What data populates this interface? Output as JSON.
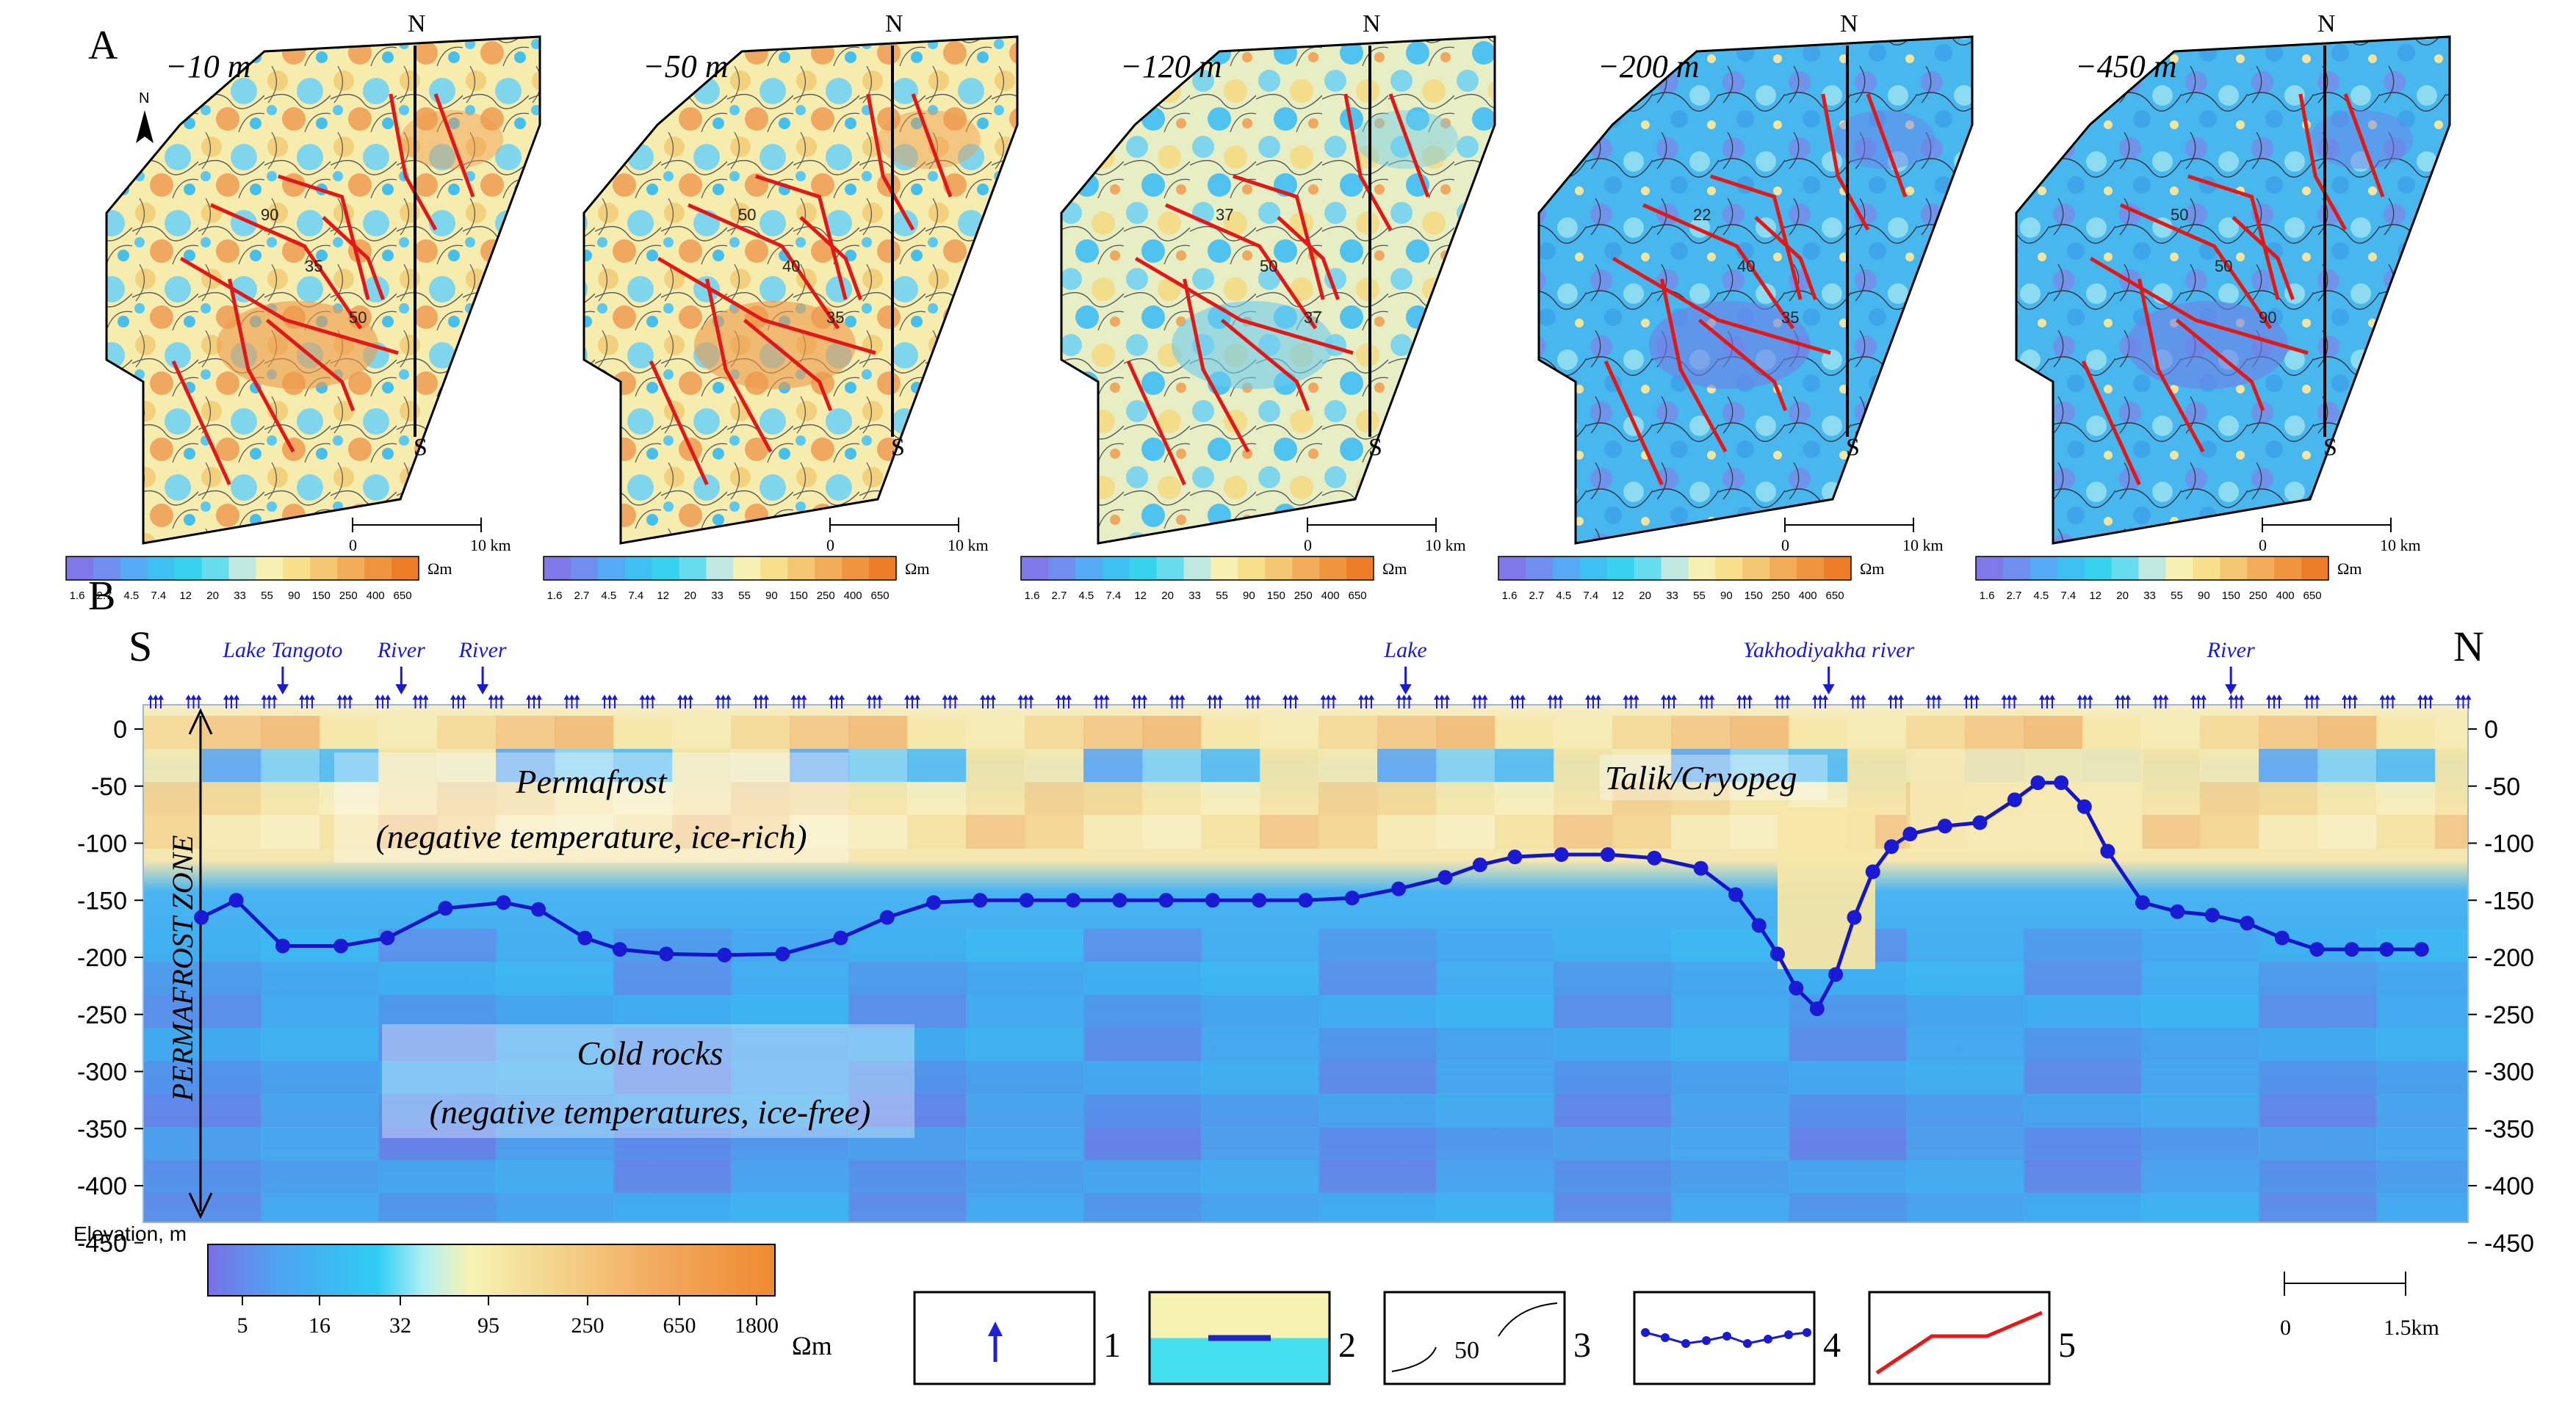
{
  "panel_a": {
    "label": "A",
    "north_arrow_letter": "N",
    "maps": [
      {
        "depth": "−10 m",
        "north": "N",
        "south": "S",
        "theme": "warm"
      },
      {
        "depth": "−50 m",
        "north": "N",
        "south": "S",
        "theme": "warm"
      },
      {
        "depth": "−120 m",
        "north": "N",
        "south": "S",
        "theme": "mixed"
      },
      {
        "depth": "−200 m",
        "north": "N",
        "south": "S",
        "theme": "cold"
      },
      {
        "depth": "−450 m",
        "north": "N",
        "south": "S",
        "theme": "cold"
      }
    ],
    "contour_labels": [
      "90",
      "35",
      "50",
      "50",
      "40",
      "35",
      "37",
      "50",
      "37",
      "22",
      "40",
      "35",
      "50",
      "50"
    ],
    "scalebar": {
      "zero": "0",
      "end": "10 km"
    },
    "colorbar": {
      "ticks": [
        "1.6",
        "2.7",
        "4.5",
        "7.4",
        "12",
        "20",
        "33",
        "55",
        "90",
        "150",
        "250",
        "400",
        "650"
      ],
      "unit": "Ωm",
      "colors": [
        "#7e78e8",
        "#6f8ef0",
        "#56a9f4",
        "#3fc0f2",
        "#36d2ee",
        "#66dcec",
        "#bfe9e0",
        "#f6f1b3",
        "#f7df8c",
        "#f5c772",
        "#f3ad5a",
        "#f0943e",
        "#ee7d2a"
      ]
    }
  },
  "panel_b": {
    "label": "B",
    "end_left": "S",
    "end_right": "N",
    "features": [
      {
        "text": "Lake Tangoto",
        "pos": 0.06
      },
      {
        "text": "River",
        "pos": 0.111
      },
      {
        "text": "River",
        "pos": 0.146
      },
      {
        "text": "Lake",
        "pos": 0.543
      },
      {
        "text": "Yakhodiyakha river",
        "pos": 0.725
      },
      {
        "text": "River",
        "pos": 0.898
      }
    ],
    "zones": {
      "permafrost_title": "Permafrost",
      "permafrost_sub": "(negative temperature, ice-rich)",
      "talik": "Talik/Cryopeg",
      "cold_title": "Cold rocks",
      "cold_sub": "(negative temperatures, ice-free)",
      "permafrost_zone": "PERMAFROST ZONE"
    },
    "y_ticks": [
      "0",
      "-50",
      "-100",
      "-150",
      "-200",
      "-250",
      "-300",
      "-350",
      "-400",
      "-450"
    ],
    "elevation_label": "Elevation, m",
    "scalebar": {
      "zero": "0",
      "end": "1.5km"
    },
    "colorbar": {
      "ticks": [
        "5",
        "16",
        "32",
        "95",
        "250",
        "650",
        "1800"
      ],
      "unit": "Ωm"
    },
    "legend": [
      {
        "num": "1",
        "icon": "arrow-up-icon"
      },
      {
        "num": "2",
        "icon": "water-line-icon"
      },
      {
        "num": "3",
        "icon": "contour-line-icon",
        "value": "50"
      },
      {
        "num": "4",
        "icon": "boundary-dots-icon"
      },
      {
        "num": "5",
        "icon": "fault-line-icon"
      }
    ]
  },
  "chart_data": {
    "type": "line",
    "series": [
      {
        "x": [
          0.025,
          0.04,
          0.06,
          0.085,
          0.105,
          0.13,
          0.155,
          0.17,
          0.19,
          0.205,
          0.225,
          0.25,
          0.275,
          0.3,
          0.32,
          0.34,
          0.36,
          0.38,
          0.4,
          0.42,
          0.44,
          0.46,
          0.48,
          0.5,
          0.52,
          0.54,
          0.56,
          0.575,
          0.59,
          0.61,
          0.63,
          0.65,
          0.67,
          0.685,
          0.695,
          0.703,
          0.711,
          0.72,
          0.728,
          0.736,
          0.744,
          0.752,
          0.76,
          0.775,
          0.79,
          0.805,
          0.815,
          0.825,
          0.835,
          0.845,
          0.86,
          0.875,
          0.89,
          0.905,
          0.92,
          0.935,
          0.95,
          0.965,
          0.98
        ],
        "y": [
          -165,
          -150,
          -190,
          -190,
          -183,
          -157,
          -152,
          -158,
          -183,
          -193,
          -197,
          -198,
          -197,
          -183,
          -165,
          -152,
          -150,
          -150,
          -150,
          -150,
          -150,
          -150,
          -150,
          -150,
          -148,
          -140,
          -130,
          -119,
          -112,
          -110,
          -110,
          -113,
          -122,
          -145,
          -172,
          -197,
          -227,
          -245,
          -215,
          -165,
          -125,
          -103,
          -92,
          -85,
          -82,
          -62,
          -47,
          -47,
          -68,
          -107,
          -152,
          -160,
          -163,
          -170,
          -183,
          -193,
          -193,
          -193,
          -193
        ]
      }
    ],
    "xlim": [
      0,
      1
    ],
    "ylim": [
      -470,
      30
    ],
    "grid": false
  }
}
